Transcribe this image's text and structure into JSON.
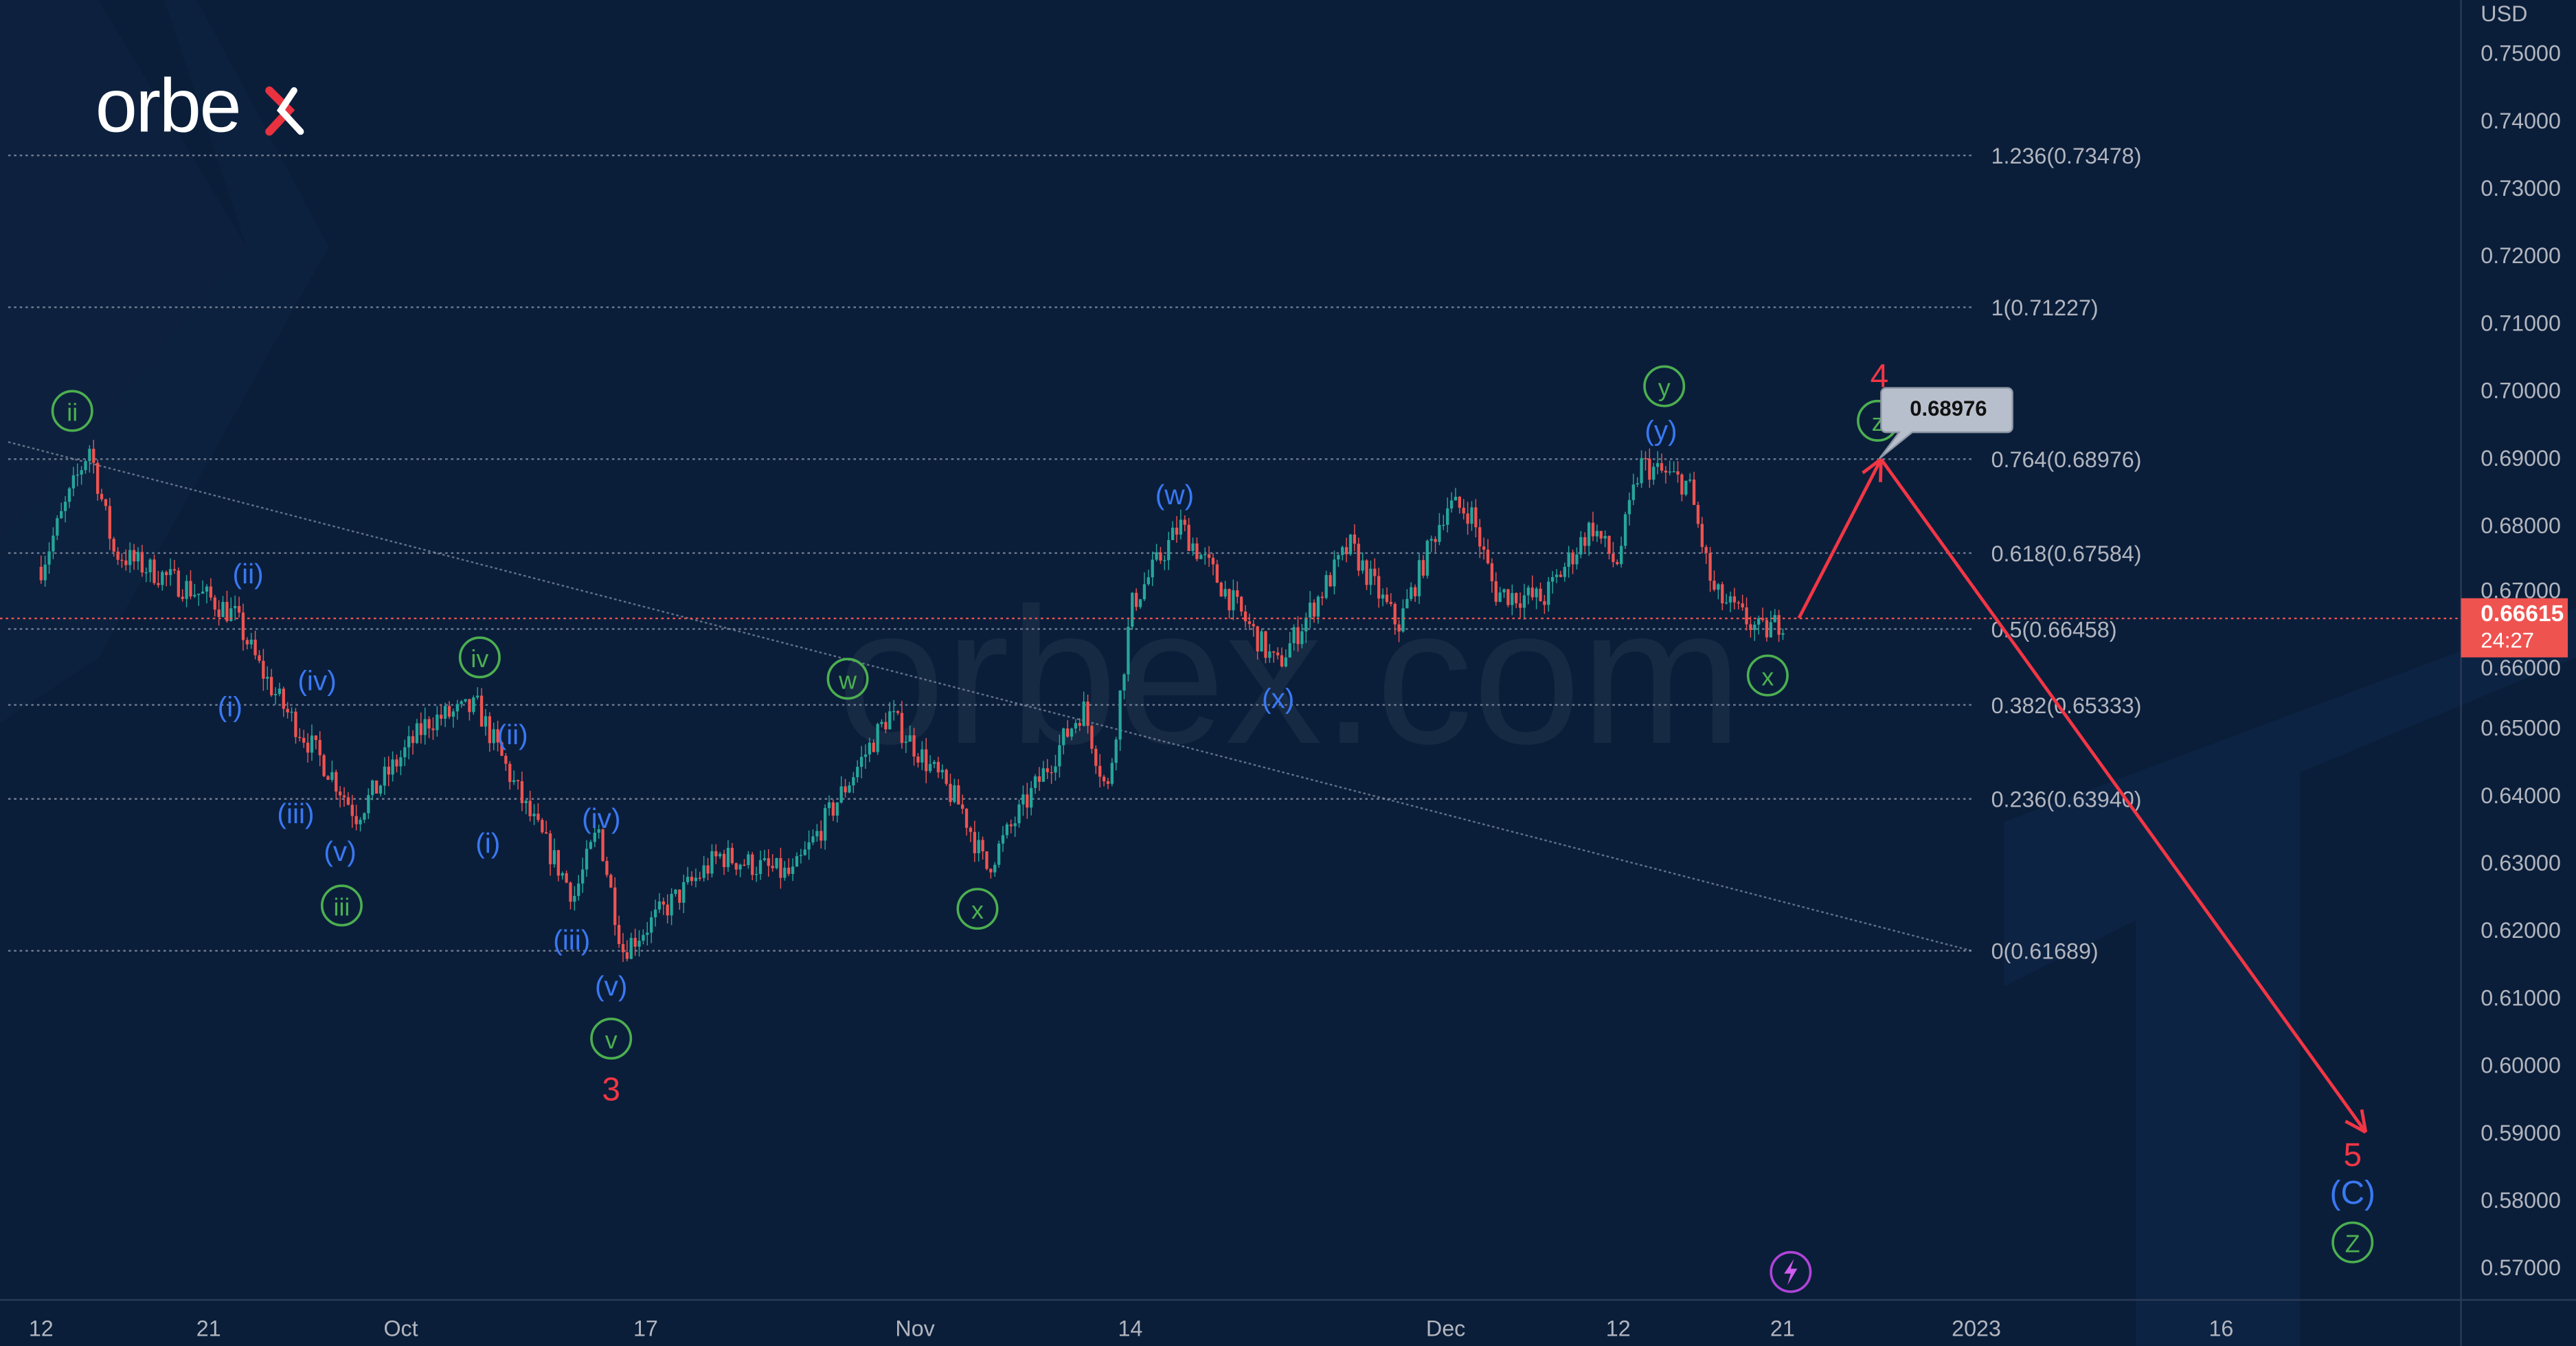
{
  "brand": {
    "logo_text": "orbex",
    "watermark": "orbex.com"
  },
  "price_axis": {
    "currency": "USD",
    "ticks": [
      "0.75000",
      "0.74000",
      "0.73000",
      "0.72000",
      "0.71000",
      "0.70000",
      "0.69000",
      "0.68000",
      "0.67000",
      "0.66000",
      "0.65000",
      "0.64000",
      "0.63000",
      "0.62000",
      "0.61000",
      "0.60000",
      "0.59000",
      "0.58000",
      "0.57000"
    ],
    "last_price": "0.66615",
    "countdown": "24:27"
  },
  "time_axis": {
    "ticks": [
      "12",
      "21",
      "Oct",
      "17",
      "Nov",
      "14",
      "Dec",
      "12",
      "21",
      "2023",
      "16"
    ]
  },
  "fib_levels": [
    {
      "label": "1.236(0.73478)",
      "price": 0.73478
    },
    {
      "label": "1(0.71227)",
      "price": 0.71227
    },
    {
      "label": "0.764(0.68976)",
      "price": 0.68976
    },
    {
      "label": "0.618(0.67584)",
      "price": 0.67584
    },
    {
      "label": "0.5(0.66458)",
      "price": 0.66458
    },
    {
      "label": "0.382(0.65333)",
      "price": 0.65333
    },
    {
      "label": "0.236(0.63940)",
      "price": 0.6394
    },
    {
      "label": "0(0.61689)",
      "price": 0.61689
    }
  ],
  "callout": {
    "text": "0.68976"
  },
  "wave_labels": {
    "green": [
      "ii",
      "iii",
      "iv",
      "v",
      "w",
      "x",
      "y",
      "z",
      "x",
      "Z"
    ],
    "blue": [
      "(ii)",
      "(i)",
      "(iv)",
      "(iii)",
      "(v)",
      "(ii)",
      "(i)",
      "(iv)",
      "(iii)",
      "(v)",
      "(w)",
      "(x)",
      "(y)",
      "(C)"
    ],
    "red": [
      "3",
      "4",
      "5"
    ]
  },
  "colors": {
    "background": "#0a1e3a",
    "up": "#26a69a",
    "down": "#ef5350",
    "wave_green": "#4caf50",
    "wave_blue": "#3a78f2",
    "wave_red": "#f23645",
    "price_tag": "#ef5350"
  },
  "icons": {
    "alert": "lightning-icon"
  },
  "chart_data": {
    "type": "candlestick",
    "title": "",
    "xlabel": "",
    "ylabel": "USD",
    "ylim": [
      0.57,
      0.75
    ],
    "grid": false,
    "path": [
      {
        "t": "2022-09-12",
        "p": 0.6738
      },
      {
        "t": "2022-09-14",
        "p": 0.6916
      },
      {
        "t": "2022-09-15",
        "p": 0.676
      },
      {
        "t": "2022-09-21",
        "p": 0.669
      },
      {
        "t": "2022-09-22",
        "p": 0.6665
      },
      {
        "t": "2022-09-23",
        "p": 0.659
      },
      {
        "t": "2022-09-26",
        "p": 0.653
      },
      {
        "t": "2022-09-28",
        "p": 0.643
      },
      {
        "t": "2022-09-29",
        "p": 0.637
      },
      {
        "t": "2022-10-04",
        "p": 0.651
      },
      {
        "t": "2022-10-06",
        "p": 0.653
      },
      {
        "t": "2022-10-10",
        "p": 0.638
      },
      {
        "t": "2022-10-12",
        "p": 0.625
      },
      {
        "t": "2022-10-13",
        "p": 0.635
      },
      {
        "t": "2022-10-14",
        "p": 0.617
      },
      {
        "t": "2022-10-20",
        "p": 0.631
      },
      {
        "t": "2022-10-25",
        "p": 0.628
      },
      {
        "t": "2022-10-31",
        "p": 0.652
      },
      {
        "t": "2022-11-03",
        "p": 0.638
      },
      {
        "t": "2022-11-04",
        "p": 0.629
      },
      {
        "t": "2022-11-10",
        "p": 0.653
      },
      {
        "t": "2022-11-11",
        "p": 0.64
      },
      {
        "t": "2022-11-14",
        "p": 0.668
      },
      {
        "t": "2022-11-16",
        "p": 0.68
      },
      {
        "t": "2022-11-22",
        "p": 0.659
      },
      {
        "t": "2022-11-25",
        "p": 0.677
      },
      {
        "t": "2022-11-29",
        "p": 0.665
      },
      {
        "t": "2022-12-01",
        "p": 0.683
      },
      {
        "t": "2022-12-02",
        "p": 0.682
      },
      {
        "t": "2022-12-05",
        "p": 0.67
      },
      {
        "t": "2022-12-07",
        "p": 0.669
      },
      {
        "t": "2022-12-09",
        "p": 0.68
      },
      {
        "t": "2022-12-12",
        "p": 0.674
      },
      {
        "t": "2022-12-13",
        "p": 0.689
      },
      {
        "t": "2022-12-15",
        "p": 0.686
      },
      {
        "t": "2022-12-16",
        "p": 0.67
      },
      {
        "t": "2022-12-20",
        "p": 0.664
      },
      {
        "t": "2022-12-21",
        "p": 0.6662
      }
    ],
    "projection": [
      {
        "t": "2022-12-21",
        "p": 0.6662
      },
      {
        "t": "2022-12-27",
        "p": 0.68976
      },
      {
        "t": "2023-01-19",
        "p": 0.59
      }
    ],
    "trendline": [
      {
        "t": "2022-09-12",
        "p": 0.6923
      },
      {
        "t": "2023-01-02",
        "p": 0.6169
      }
    ]
  }
}
